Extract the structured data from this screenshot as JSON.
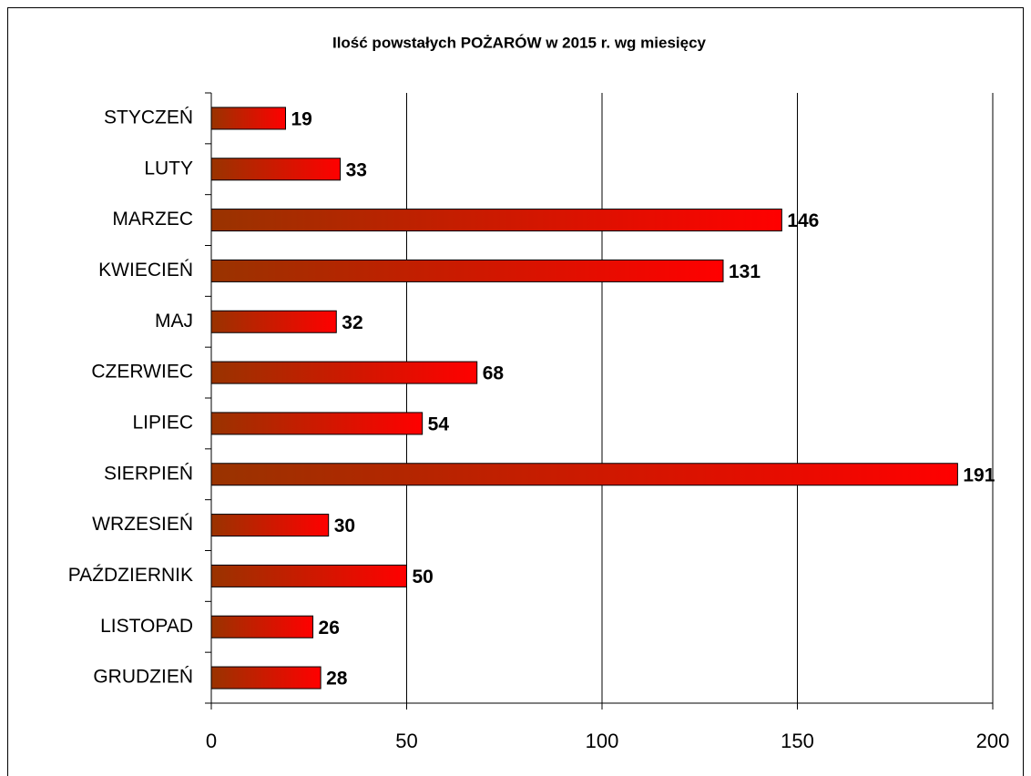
{
  "chart_data": {
    "type": "bar",
    "orientation": "horizontal",
    "title": "Ilość powstałych POŻARÓW w 2015 r. wg miesięcy",
    "categories": [
      "STYCZEŃ",
      "LUTY",
      "MARZEC",
      "KWIECIEŃ",
      "MAJ",
      "CZERWIEC",
      "LIPIEC",
      "SIERPIEŃ",
      "WRZESIEŃ",
      "PAŹDZIERNIK",
      "LISTOPAD",
      "GRUDZIEŃ"
    ],
    "values": [
      19,
      33,
      146,
      131,
      32,
      68,
      54,
      191,
      30,
      50,
      26,
      28
    ],
    "color": [
      "#993300",
      "#ff0000"
    ],
    "xlim": [
      0,
      200
    ],
    "xticks": [
      0,
      50,
      100,
      150,
      200
    ],
    "grid": true
  }
}
